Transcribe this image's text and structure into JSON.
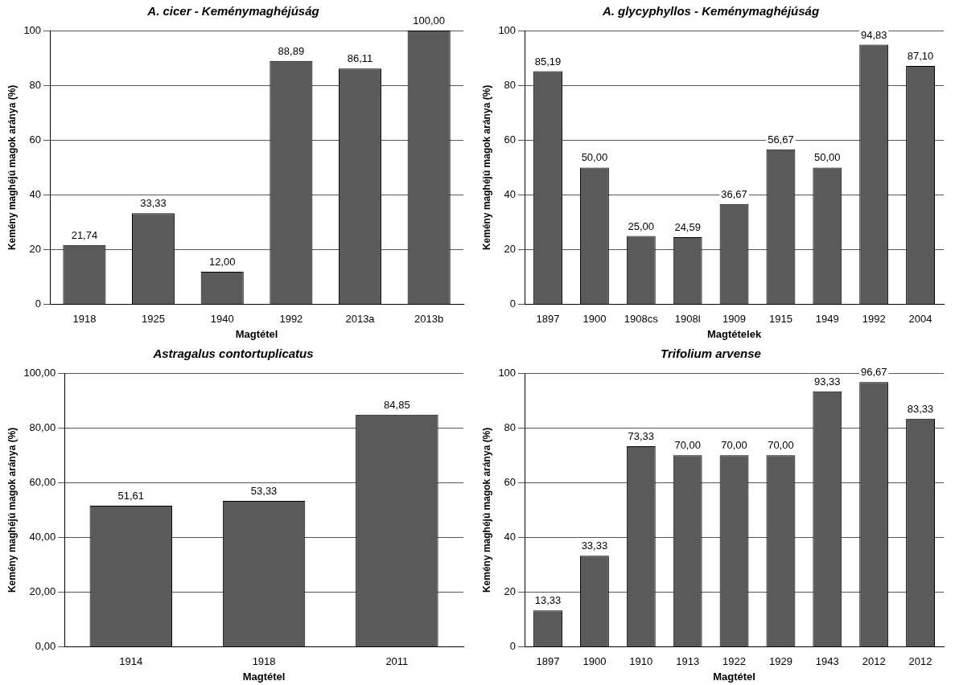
{
  "chart_data": [
    {
      "type": "bar",
      "title": "A. cicer - Keménymaghéjúság",
      "xlabel": "Magtétel",
      "ylabel": "Kemény maghéjú magok aránya (%)",
      "categories": [
        "1918",
        "1925",
        "1940",
        "1992",
        "2013a",
        "2013b"
      ],
      "values": [
        21.74,
        33.33,
        12.0,
        88.89,
        86.11,
        100.0
      ],
      "value_labels": [
        "21,74",
        "33,33",
        "12,00",
        "88,89",
        "86,11",
        "100,00"
      ],
      "color": "#5a5a5a",
      "ylim": [
        0,
        100
      ],
      "yticks": [
        0,
        20,
        40,
        60,
        80,
        100
      ],
      "grid": "y",
      "legend": false
    },
    {
      "type": "bar",
      "title": "A. glycyphyllos - Keménymaghéjúság",
      "xlabel": "Magtételek",
      "ylabel": "Kemény maghéjú magok aránya (%)",
      "categories": [
        "1897",
        "1900",
        "1908cs",
        "1908l",
        "1909",
        "1915",
        "1949",
        "1992",
        "2004"
      ],
      "values": [
        85.19,
        50.0,
        25.0,
        24.59,
        36.67,
        56.67,
        50.0,
        94.83,
        87.1
      ],
      "value_labels": [
        "85,19",
        "50,00",
        "25,00",
        "24,59",
        "36,67",
        "56,67",
        "50,00",
        "94,83",
        "87,10"
      ],
      "color": "#5a5a5a",
      "ylim": [
        0,
        100
      ],
      "yticks": [
        0,
        20,
        40,
        60,
        80,
        100
      ],
      "grid": "y",
      "legend": false
    },
    {
      "type": "bar",
      "title": "Astragalus contortuplicatus",
      "xlabel": "Magtétel",
      "ylabel": "Kemény maghéjú magok aránya (%)",
      "categories": [
        "1914",
        "1918",
        "2011"
      ],
      "values": [
        51.61,
        53.33,
        84.85
      ],
      "value_labels": [
        "51,61",
        "53,33",
        "84,85"
      ],
      "color": "#5a5a5a",
      "ylim": [
        0,
        100
      ],
      "yticks": [
        {
          "value": 0,
          "label": "0,00"
        },
        {
          "value": 20,
          "label": "20,00"
        },
        {
          "value": 40,
          "label": "40,00"
        },
        {
          "value": 60,
          "label": "60,00"
        },
        {
          "value": 80,
          "label": "80,00"
        },
        {
          "value": 100,
          "label": "100,00"
        }
      ],
      "grid": "y",
      "legend": false
    },
    {
      "type": "bar",
      "title": "Trifolium arvense",
      "xlabel": "Magtétel",
      "ylabel": "Kemény maghéjú magok aránya (%)",
      "categories": [
        "1897",
        "1900",
        "1910",
        "1913",
        "1922",
        "1929",
        "1943",
        "2012",
        "2012"
      ],
      "values": [
        13.33,
        33.33,
        73.33,
        70.0,
        70.0,
        70.0,
        93.33,
        96.67,
        83.33
      ],
      "value_labels": [
        "13,33",
        "33,33",
        "73,33",
        "70,00",
        "70,00",
        "70,00",
        "93,33",
        "96,67",
        "83,33"
      ],
      "color": "#5a5a5a",
      "ylim": [
        0,
        100
      ],
      "yticks": [
        0,
        20,
        40,
        60,
        80,
        100
      ],
      "grid": "y",
      "legend": false
    }
  ]
}
